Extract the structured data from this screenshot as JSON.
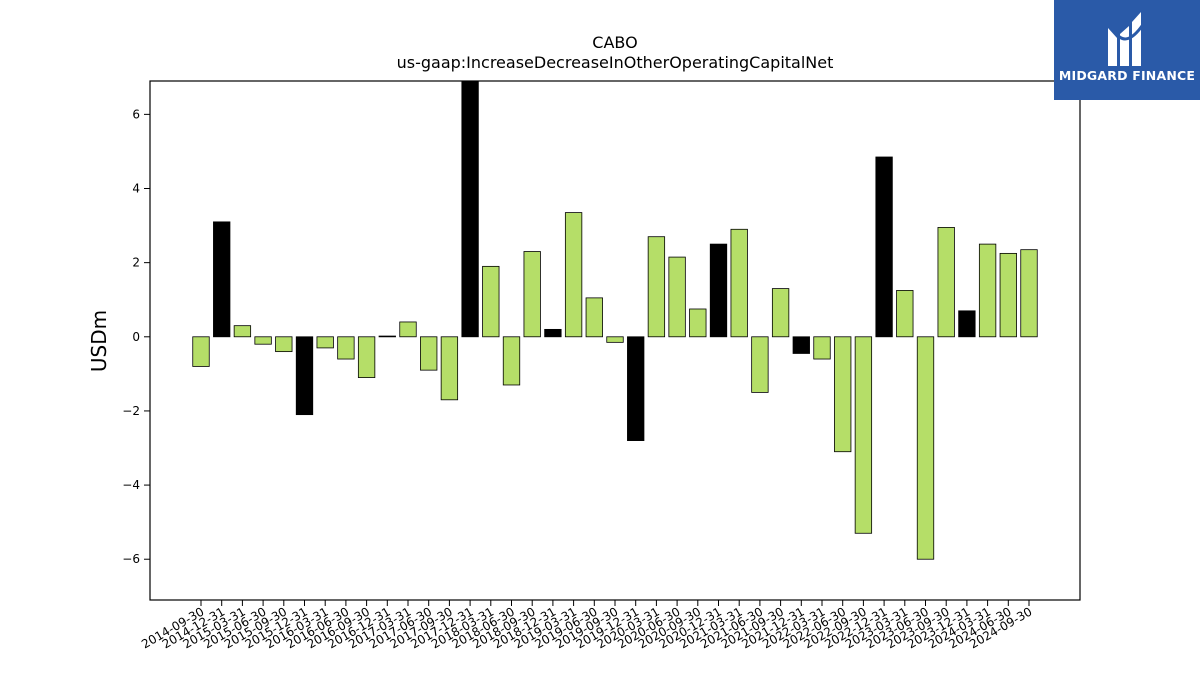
{
  "brand": {
    "name": "MIDGARD FINANCE",
    "bg_color": "#2a5aa8",
    "icon": "midgard-logo-icon"
  },
  "chart_data": {
    "type": "bar",
    "title": "CABO",
    "subtitle": "us-gaap:IncreaseDecreaseInOtherOperatingCapitalNet",
    "xlabel": "",
    "ylabel": "USDm",
    "ylim": [
      -7.1,
      6.9
    ],
    "yticks": [
      -6,
      -4,
      -2,
      0,
      2,
      4,
      6
    ],
    "grid": false,
    "colors": {
      "regular": "#b5de68",
      "highlight": "#000000",
      "edge": "#000000"
    },
    "categories": [
      "2014-09-30",
      "2014-12-31",
      "2015-03-31",
      "2015-06-30",
      "2015-09-30",
      "2015-12-31",
      "2016-03-31",
      "2016-06-30",
      "2016-09-30",
      "2016-12-31",
      "2017-03-31",
      "2017-06-30",
      "2017-09-30",
      "2017-12-31",
      "2018-03-31",
      "2018-06-30",
      "2018-09-30",
      "2018-12-31",
      "2019-03-31",
      "2019-06-30",
      "2019-09-30",
      "2019-12-31",
      "2020-03-31",
      "2020-06-30",
      "2020-09-30",
      "2020-12-31",
      "2021-03-31",
      "2021-06-30",
      "2021-09-30",
      "2021-12-31",
      "2022-03-31",
      "2022-06-30",
      "2022-09-30",
      "2022-12-31",
      "2023-03-31",
      "2023-06-30",
      "2023-09-30",
      "2023-12-31",
      "2024-03-31",
      "2024-06-30",
      "2024-09-30"
    ],
    "values": [
      -0.8,
      3.1,
      0.3,
      -0.2,
      -0.4,
      -2.1,
      -0.3,
      -0.6,
      -1.1,
      0.02,
      0.4,
      -0.9,
      -1.7,
      6.9,
      1.9,
      -1.3,
      2.3,
      0.2,
      3.35,
      1.05,
      -0.15,
      -2.8,
      2.7,
      2.15,
      0.75,
      2.5,
      2.9,
      -1.5,
      1.3,
      -0.45,
      -0.6,
      -3.1,
      -5.3,
      4.85,
      1.25,
      -6.0,
      2.95,
      0.7,
      2.5,
      2.25,
      2.35
    ],
    "highlight": [
      false,
      true,
      false,
      false,
      false,
      true,
      false,
      false,
      false,
      true,
      false,
      false,
      false,
      true,
      false,
      false,
      false,
      true,
      false,
      false,
      false,
      true,
      false,
      false,
      false,
      true,
      false,
      false,
      false,
      true,
      false,
      false,
      false,
      true,
      false,
      false,
      false,
      true,
      false,
      false,
      false
    ]
  }
}
